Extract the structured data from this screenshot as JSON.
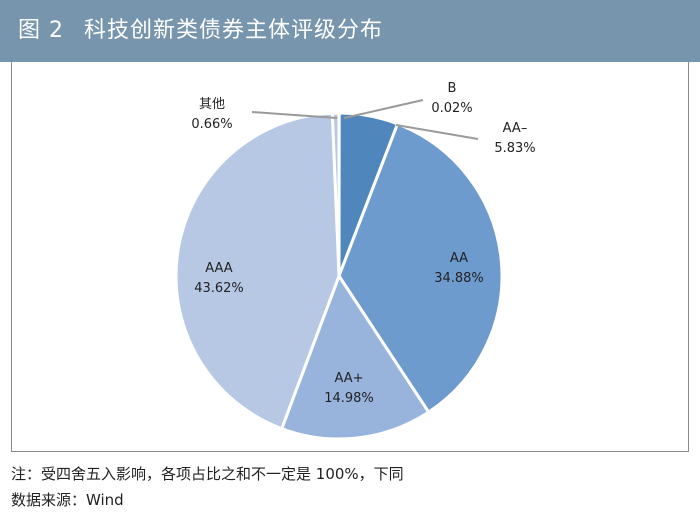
{
  "header": {
    "figure_label": "图 2",
    "title": "科技创新类债券主体评级分布"
  },
  "chart_data": {
    "type": "pie",
    "title": "科技创新类债券主体评级分布",
    "slices": [
      {
        "name": "其他",
        "value": 0.66,
        "label": "0.66%",
        "color": "#b7c8e1"
      },
      {
        "name": "B",
        "value": 0.02,
        "label": "0.02%",
        "color": "#4f7fb2"
      },
      {
        "name": "AA-",
        "value": 5.83,
        "label": "5.83%",
        "color": "#4f87bc"
      },
      {
        "name": "AA",
        "value": 34.88,
        "label": "34.88%",
        "color": "#6d9bcd"
      },
      {
        "name": "AA+",
        "value": 14.98,
        "label": "14.98%",
        "color": "#98b4dd"
      },
      {
        "name": "AAA",
        "value": 43.62,
        "label": "43.62%",
        "color": "#b6c8e4"
      }
    ],
    "legend": "none",
    "grid": false
  },
  "footer": {
    "note": "注：受四舍五入影响，各项占比之和不一定是 100%，下同",
    "source": "数据来源：Wind"
  },
  "colors": {
    "header_bg": "#7796ae",
    "leader_line": "#9a9a9a"
  }
}
